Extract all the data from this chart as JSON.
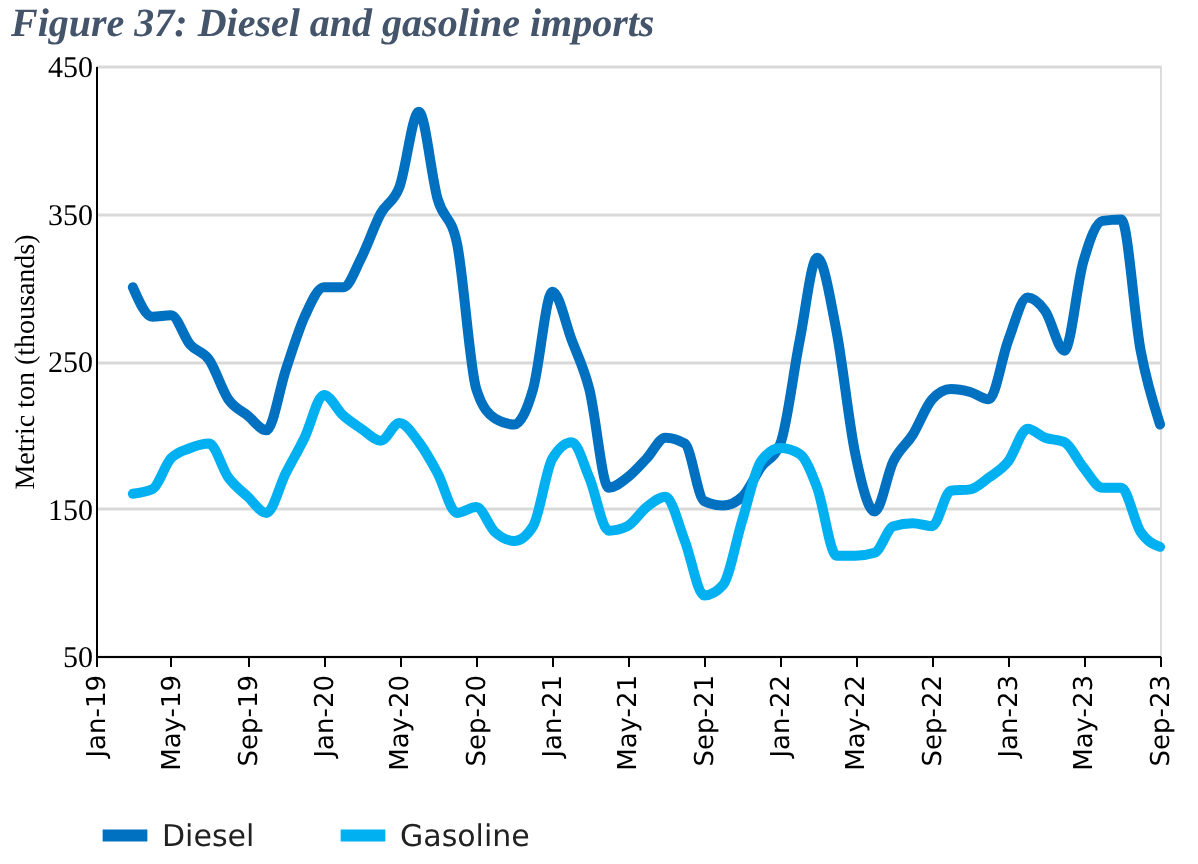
{
  "chart_data": {
    "type": "line",
    "title": "Figure 37: Diesel and gasoline imports",
    "ylabel": "Metric ton (thousands)",
    "x": [
      "2019-03",
      "2019-04",
      "2019-05",
      "2019-06",
      "2019-07",
      "2019-08",
      "2019-09",
      "2019-10",
      "2019-11",
      "2019-12",
      "2020-01",
      "2020-02",
      "2020-03",
      "2020-04",
      "2020-05",
      "2020-06",
      "2020-07",
      "2020-08",
      "2020-09",
      "2020-10",
      "2020-11",
      "2020-12",
      "2021-01",
      "2021-02",
      "2021-03",
      "2021-04",
      "2021-05",
      "2021-06",
      "2021-07",
      "2021-08",
      "2021-09",
      "2021-10",
      "2021-11",
      "2021-12",
      "2022-01",
      "2022-02",
      "2022-03",
      "2022-04",
      "2022-05",
      "2022-06",
      "2022-07",
      "2022-08",
      "2022-09",
      "2022-10",
      "2022-11",
      "2022-12",
      "2023-01",
      "2023-02",
      "2023-03",
      "2023-04",
      "2023-05",
      "2023-06",
      "2023-07",
      "2023-08",
      "2023-09"
    ],
    "series": [
      {
        "name": "Diesel",
        "color": "#0070c0",
        "values": [
          300,
          280,
          281,
          261,
          251,
          224,
          213,
          203,
          244,
          280,
          300,
          300,
          320,
          350,
          368,
          419,
          360,
          330,
          231,
          211,
          207,
          231,
          297,
          264,
          231,
          164,
          171,
          184,
          198,
          194,
          155,
          152,
          158,
          178,
          194,
          264,
          320,
          270,
          187,
          148,
          182,
          200,
          224,
          231,
          229,
          224,
          264,
          293,
          284,
          257,
          317,
          345,
          346,
          257,
          207
        ]
      },
      {
        "name": "Gasoline",
        "color": "#00b0f0",
        "values": [
          160,
          163,
          184,
          191,
          194,
          171,
          158,
          147,
          174,
          198,
          227,
          213,
          204,
          196,
          208,
          195,
          174,
          147,
          151,
          134,
          128,
          138,
          184,
          195,
          171,
          135,
          138,
          151,
          158,
          128,
          91,
          98,
          142,
          182,
          191,
          187,
          164,
          118,
          118,
          120,
          138,
          140,
          138,
          162,
          163,
          171,
          182,
          204,
          198,
          195,
          178,
          164,
          164,
          134,
          124
        ]
      }
    ],
    "xlim": [
      "2019-01",
      "2023-09"
    ],
    "xticks": [
      {
        "value": "2019-01",
        "label": "Jan-19"
      },
      {
        "value": "2019-05",
        "label": "May-19"
      },
      {
        "value": "2019-09",
        "label": "Sep-19"
      },
      {
        "value": "2020-01",
        "label": "Jan-20"
      },
      {
        "value": "2020-05",
        "label": "May-20"
      },
      {
        "value": "2020-09",
        "label": "Sep-20"
      },
      {
        "value": "2021-01",
        "label": "Jan-21"
      },
      {
        "value": "2021-05",
        "label": "May-21"
      },
      {
        "value": "2021-09",
        "label": "Sep-21"
      },
      {
        "value": "2022-01",
        "label": "Jan-22"
      },
      {
        "value": "2022-05",
        "label": "May-22"
      },
      {
        "value": "2022-09",
        "label": "Sep-22"
      },
      {
        "value": "2023-01",
        "label": "Jan-23"
      },
      {
        "value": "2023-05",
        "label": "May-23"
      },
      {
        "value": "2023-09",
        "label": "Sep-23"
      }
    ],
    "ylim": [
      50,
      450
    ],
    "yticks": [
      50,
      150,
      250,
      350,
      450
    ],
    "grid": "y",
    "legend": "bottom",
    "marker": "none",
    "line_style": "solid"
  }
}
